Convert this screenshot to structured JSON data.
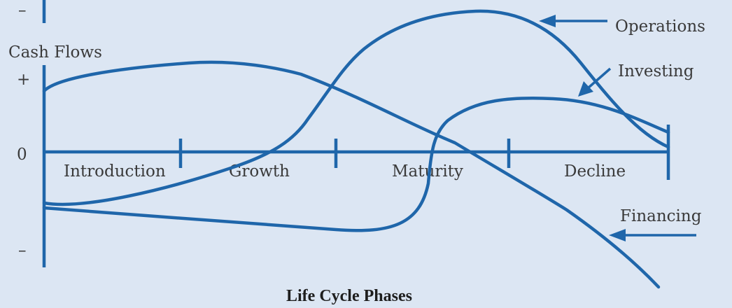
{
  "y_axis": {
    "label": "Cash Flows",
    "top_sign": "–",
    "plus_sign": "+",
    "zero": "0",
    "bottom_sign": "–"
  },
  "phases": [
    "Introduction",
    "Growth",
    "Maturity",
    "Decline"
  ],
  "x_axis_title": "Life Cycle Phases",
  "series": {
    "operations": "Operations",
    "investing": "Investing",
    "financing": "Financing"
  },
  "colors": {
    "line": "#1f66aa",
    "background": "#dce6f3",
    "text": "#3a3a3a"
  }
}
